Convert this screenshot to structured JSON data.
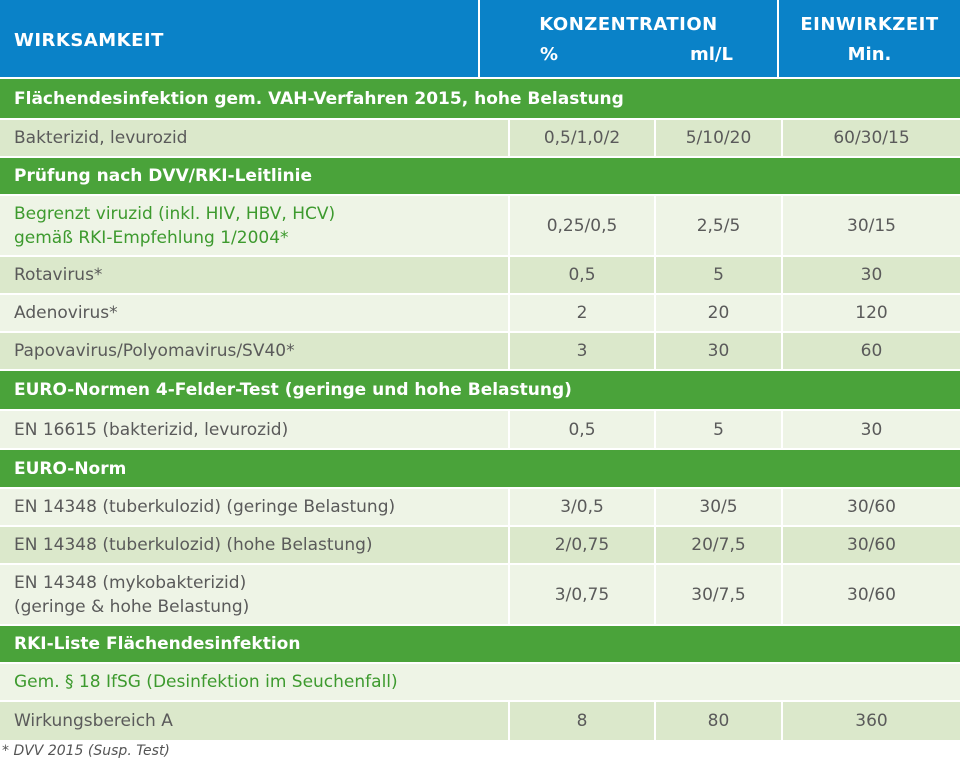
{
  "header": {
    "col1": "WIRKSAMKEIT",
    "col2": "KONZENTRATION",
    "col2_sub1": "%",
    "col2_sub2": "ml/L",
    "col3": "EINWIRKZEIT",
    "col3_sub": "Min."
  },
  "rows": [
    {
      "type": "section",
      "label": "Flächendesinfektion gem. VAH-Verfahren 2015, hohe Belastung"
    },
    {
      "type": "data",
      "label": "Bakterizid, levurozid",
      "pct": "0,5/1,0/2",
      "mll": "5/10/20",
      "min": "60/30/15"
    },
    {
      "type": "section",
      "label": "Prüfung nach DVV/RKI-Leitlinie"
    },
    {
      "type": "data",
      "label_line1": "Begrenzt viruzid (inkl. HIV, HBV, HCV)",
      "label_line2": "gemäß RKI-Empfehlung 1/2004*",
      "pct": "0,25/0,5",
      "mll": "2,5/5",
      "min": "30/15"
    },
    {
      "type": "data",
      "label": "Rotavirus*",
      "pct": "0,5",
      "mll": "5",
      "min": "30"
    },
    {
      "type": "data",
      "label": "Adenovirus*",
      "pct": "2",
      "mll": "20",
      "min": "120"
    },
    {
      "type": "data",
      "label": "Papovavirus/Polyomavirus/SV40*",
      "pct": "3",
      "mll": "30",
      "min": "60"
    },
    {
      "type": "section",
      "label": "EURO-Normen 4-Felder-Test (geringe und hohe Belastung)"
    },
    {
      "type": "data",
      "label": "EN 16615 (bakterizid, levurozid)",
      "pct": "0,5",
      "mll": "5",
      "min": "30"
    },
    {
      "type": "section",
      "label": "EURO-Norm"
    },
    {
      "type": "data",
      "label": "EN 14348 (tuberkulozid) (geringe Belastung)",
      "pct": "3/0,5",
      "mll": "30/5",
      "min": "30/60"
    },
    {
      "type": "data",
      "label": "EN 14348 (tuberkulozid) (hohe Belastung)",
      "pct": "2/0,75",
      "mll": "20/7,5",
      "min": "30/60"
    },
    {
      "type": "data",
      "label_line1": "EN 14348 (mykobakterizid)",
      "label_line2": "(geringe & hohe Belastung)",
      "pct": "3/0,75",
      "mll": "30/7,5",
      "min": "30/60"
    },
    {
      "type": "section",
      "label": "RKI-Liste Flächendesinfektion"
    },
    {
      "type": "subsection",
      "label": "Gem. § 18 IfSG (Desinfektion im Seuchenfall)"
    },
    {
      "type": "data",
      "label": "Wirkungsbereich A",
      "pct": "8",
      "mll": "80",
      "min": "360"
    }
  ],
  "footnote": "* DVV 2015 (Susp. Test)",
  "colors": {
    "header_blue": "#0a82c8",
    "section_green": "#4aa33a",
    "row_light": "#eef4e6",
    "row_dark": "#dbe8cb",
    "text_green": "#3d9a2e"
  }
}
